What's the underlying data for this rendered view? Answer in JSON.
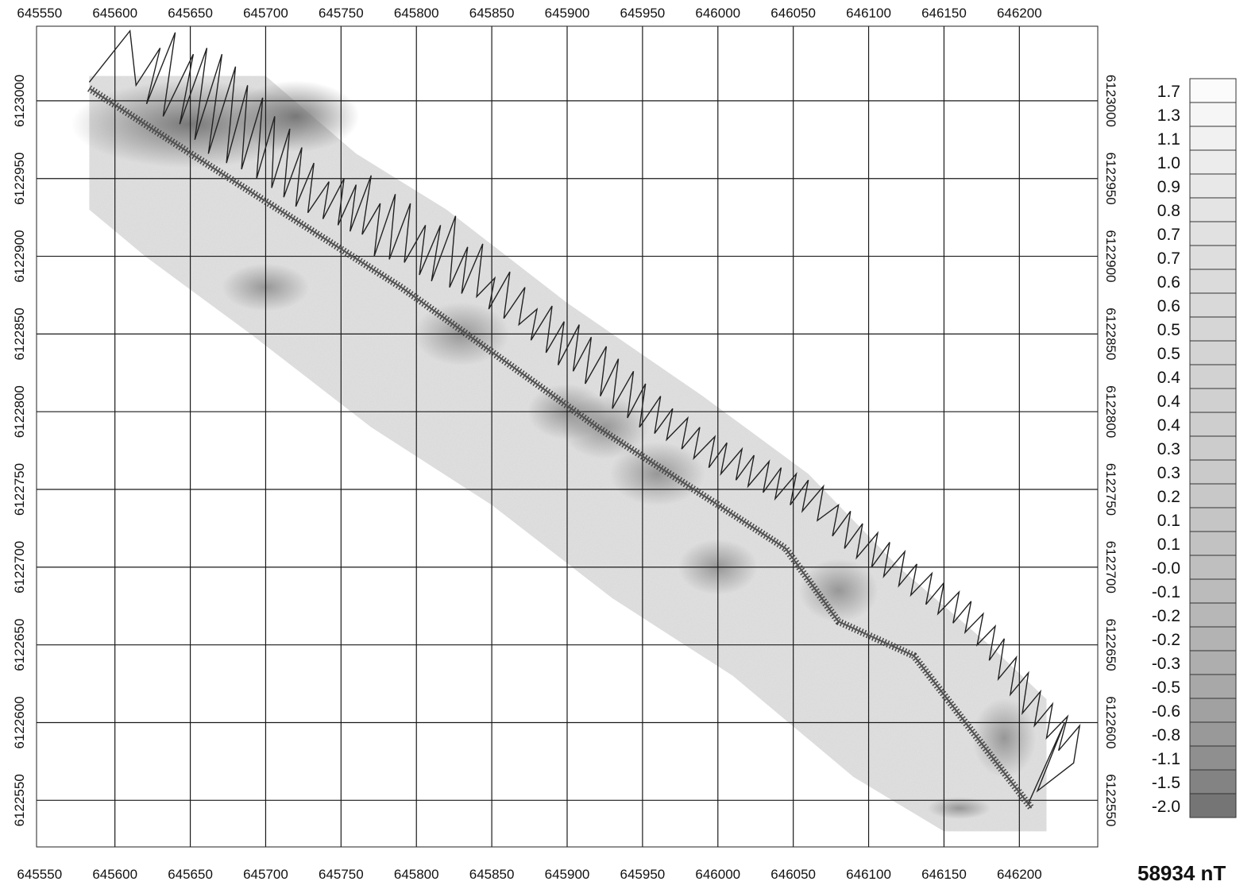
{
  "map": {
    "x_ticks": [
      "645550",
      "645600",
      "645650",
      "645700",
      "645750",
      "645800",
      "645850",
      "645900",
      "645950",
      "646000",
      "646050",
      "646100",
      "646150",
      "646200"
    ],
    "y_ticks": [
      "6123000",
      "6122950",
      "6122900",
      "6122850",
      "6122800",
      "6122750",
      "6122700",
      "6122650",
      "6122600",
      "6122550"
    ],
    "x_range": [
      645548,
      646252
    ],
    "y_range": [
      6122520,
      6123048
    ],
    "grid": true,
    "colors": {
      "grid": "#1a1a1a",
      "track": "#222222",
      "fill_light": "#d9d9d9",
      "fill_dark": "#6e6e6e"
    }
  },
  "legend": {
    "unit": "58934 nT",
    "entries": [
      {
        "label": "1.7",
        "shade": "#fbfbfb"
      },
      {
        "label": "1.3",
        "shade": "#f6f6f6"
      },
      {
        "label": "1.1",
        "shade": "#f1f1f1"
      },
      {
        "label": "1.0",
        "shade": "#ececec"
      },
      {
        "label": "0.9",
        "shade": "#e8e8e8"
      },
      {
        "label": "0.8",
        "shade": "#e4e4e4"
      },
      {
        "label": "0.7",
        "shade": "#e1e1e1"
      },
      {
        "label": "0.7",
        "shade": "#dedede"
      },
      {
        "label": "0.6",
        "shade": "#dbdbdb"
      },
      {
        "label": "0.6",
        "shade": "#d9d9d9"
      },
      {
        "label": "0.5",
        "shade": "#d6d6d6"
      },
      {
        "label": "0.5",
        "shade": "#d4d4d4"
      },
      {
        "label": "0.4",
        "shade": "#d2d2d2"
      },
      {
        "label": "0.4",
        "shade": "#d0d0d0"
      },
      {
        "label": "0.4",
        "shade": "#cecece"
      },
      {
        "label": "0.3",
        "shade": "#cccccc"
      },
      {
        "label": "0.3",
        "shade": "#cacaca"
      },
      {
        "label": "0.2",
        "shade": "#c8c8c8"
      },
      {
        "label": "0.1",
        "shade": "#c5c5c5"
      },
      {
        "label": "0.1",
        "shade": "#c2c2c2"
      },
      {
        "label": "-0.0",
        "shade": "#bfbfbf"
      },
      {
        "label": "-0.1",
        "shade": "#bbbbbb"
      },
      {
        "label": "-0.2",
        "shade": "#b7b7b7"
      },
      {
        "label": "-0.2",
        "shade": "#b3b3b3"
      },
      {
        "label": "-0.3",
        "shade": "#aeaeae"
      },
      {
        "label": "-0.5",
        "shade": "#a8a8a8"
      },
      {
        "label": "-0.6",
        "shade": "#a1a1a1"
      },
      {
        "label": "-0.8",
        "shade": "#999999"
      },
      {
        "label": "-1.1",
        "shade": "#8f8f8f"
      },
      {
        "label": "-1.5",
        "shade": "#838383"
      },
      {
        "label": "-2.0",
        "shade": "#757575"
      }
    ]
  },
  "survey": {
    "line": [
      [
        645583,
        6123008
      ],
      [
        645660,
        6122960
      ],
      [
        645790,
        6122880
      ],
      [
        645920,
        6122790
      ],
      [
        646045,
        6122712
      ],
      [
        646080,
        6122665
      ],
      [
        646130,
        6122643
      ],
      [
        646208,
        6122545
      ]
    ],
    "track": [
      [
        645583,
        6123012
      ],
      [
        645610,
        6123045
      ],
      [
        645614,
        6123010
      ],
      [
        645630,
        6123034
      ],
      [
        645621,
        6122998
      ],
      [
        645640,
        6123044
      ],
      [
        645632,
        6122990
      ],
      [
        645652,
        6123030
      ],
      [
        645643,
        6122985
      ],
      [
        645661,
        6123034
      ],
      [
        645653,
        6122975
      ],
      [
        645671,
        6123030
      ],
      [
        645662,
        6122966
      ],
      [
        645680,
        6123022
      ],
      [
        645674,
        6122960
      ],
      [
        645688,
        6123010
      ],
      [
        645684,
        6122956
      ],
      [
        645698,
        6123002
      ],
      [
        645694,
        6122950
      ],
      [
        645706,
        6122990
      ],
      [
        645704,
        6122944
      ],
      [
        645716,
        6122982
      ],
      [
        645712,
        6122938
      ],
      [
        645724,
        6122970
      ],
      [
        645720,
        6122932
      ],
      [
        645732,
        6122960
      ],
      [
        645728,
        6122928
      ],
      [
        645742,
        6122948
      ],
      [
        645738,
        6122924
      ],
      [
        645752,
        6122950
      ],
      [
        645748,
        6122920
      ],
      [
        645760,
        6122946
      ],
      [
        645756,
        6122916
      ],
      [
        645770,
        6122952
      ],
      [
        645764,
        6122914
      ],
      [
        645776,
        6122934
      ],
      [
        645772,
        6122900
      ],
      [
        645786,
        6122940
      ],
      [
        645782,
        6122898
      ],
      [
        645796,
        6122934
      ],
      [
        645792,
        6122896
      ],
      [
        645806,
        6122920
      ],
      [
        645802,
        6122888
      ],
      [
        645816,
        6122920
      ],
      [
        645810,
        6122884
      ],
      [
        645826,
        6122926
      ],
      [
        645822,
        6122880
      ],
      [
        645834,
        6122906
      ],
      [
        645830,
        6122876
      ],
      [
        645844,
        6122908
      ],
      [
        645840,
        6122874
      ],
      [
        645852,
        6122886
      ],
      [
        645848,
        6122866
      ],
      [
        645862,
        6122890
      ],
      [
        645858,
        6122860
      ],
      [
        645872,
        6122880
      ],
      [
        645868,
        6122856
      ],
      [
        645880,
        6122866
      ],
      [
        645876,
        6122846
      ],
      [
        645890,
        6122868
      ],
      [
        645886,
        6122838
      ],
      [
        645898,
        6122858
      ],
      [
        645894,
        6122830
      ],
      [
        645908,
        6122856
      ],
      [
        645904,
        6122826
      ],
      [
        645916,
        6122848
      ],
      [
        645912,
        6122818
      ],
      [
        645926,
        6122842
      ],
      [
        645922,
        6122810
      ],
      [
        645934,
        6122834
      ],
      [
        645930,
        6122802
      ],
      [
        645944,
        6122826
      ],
      [
        645940,
        6122796
      ],
      [
        645952,
        6122818
      ],
      [
        645948,
        6122790
      ],
      [
        645962,
        6122810
      ],
      [
        645958,
        6122786
      ],
      [
        645970,
        6122802
      ],
      [
        645966,
        6122782
      ],
      [
        645980,
        6122796
      ],
      [
        645976,
        6122776
      ],
      [
        645988,
        6122790
      ],
      [
        645984,
        6122770
      ],
      [
        645998,
        6122784
      ],
      [
        645994,
        6122764
      ],
      [
        646006,
        6122780
      ],
      [
        646002,
        6122760
      ],
      [
        646016,
        6122776
      ],
      [
        646012,
        6122756
      ],
      [
        646024,
        6122772
      ],
      [
        646020,
        6122752
      ],
      [
        646034,
        6122768
      ],
      [
        646030,
        6122748
      ],
      [
        646042,
        6122764
      ],
      [
        646038,
        6122744
      ],
      [
        646052,
        6122760
      ],
      [
        646048,
        6122740
      ],
      [
        646060,
        6122756
      ],
      [
        646056,
        6122736
      ],
      [
        646070,
        6122752
      ],
      [
        646066,
        6122730
      ],
      [
        646080,
        6122740
      ],
      [
        646076,
        6122720
      ],
      [
        646088,
        6122736
      ],
      [
        646084,
        6122712
      ],
      [
        646096,
        6122728
      ],
      [
        646092,
        6122706
      ],
      [
        646106,
        6122722
      ],
      [
        646102,
        6122700
      ],
      [
        646114,
        6122716
      ],
      [
        646110,
        6122694
      ],
      [
        646124,
        6122710
      ],
      [
        646120,
        6122688
      ],
      [
        646132,
        6122702
      ],
      [
        646128,
        6122682
      ],
      [
        646142,
        6122696
      ],
      [
        646138,
        6122676
      ],
      [
        646150,
        6122690
      ],
      [
        646146,
        6122670
      ],
      [
        646160,
        6122684
      ],
      [
        646156,
        6122664
      ],
      [
        646168,
        6122678
      ],
      [
        646164,
        6122658
      ],
      [
        646176,
        6122670
      ],
      [
        646172,
        6122650
      ],
      [
        646184,
        6122662
      ],
      [
        646180,
        6122640
      ],
      [
        646190,
        6122654
      ],
      [
        646186,
        6122628
      ],
      [
        646198,
        6122642
      ],
      [
        646194,
        6122618
      ],
      [
        646206,
        6122632
      ],
      [
        646202,
        6122606
      ],
      [
        646214,
        6122620
      ],
      [
        646210,
        6122598
      ],
      [
        646222,
        6122612
      ],
      [
        646218,
        6122590
      ],
      [
        646232,
        6122604
      ],
      [
        646226,
        6122582
      ],
      [
        646240,
        6122598
      ],
      [
        646236,
        6122574
      ],
      [
        646212,
        6122556
      ],
      [
        646230,
        6122600
      ],
      [
        646206,
        6122548
      ]
    ]
  }
}
